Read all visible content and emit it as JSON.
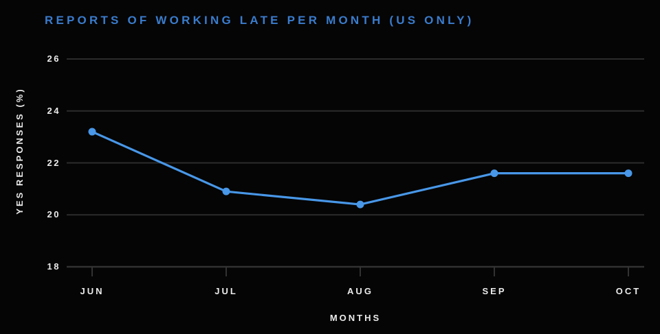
{
  "colors": {
    "background": "#050505",
    "title": "#3a7ccd",
    "line": "#4897e8",
    "grid": "#2c2c2c",
    "axis": "#323232",
    "text": "#ebebeb"
  },
  "chart_data": {
    "type": "line",
    "title": "REPORTS OF WORKING LATE PER MONTH (US ONLY)",
    "xlabel": "MONTHS",
    "ylabel": "YES RESPONSES (%)",
    "categories": [
      "JUN",
      "JUL",
      "AUG",
      "SEP",
      "OCT"
    ],
    "series": [
      {
        "name": "Yes responses (%)",
        "values": [
          23.2,
          20.9,
          20.4,
          21.6,
          21.6
        ]
      }
    ],
    "ylim": [
      18,
      26
    ],
    "yticks": [
      18,
      20,
      22,
      24,
      26
    ],
    "grid": "horizontal-only",
    "legend": "none",
    "marker": "circle"
  }
}
